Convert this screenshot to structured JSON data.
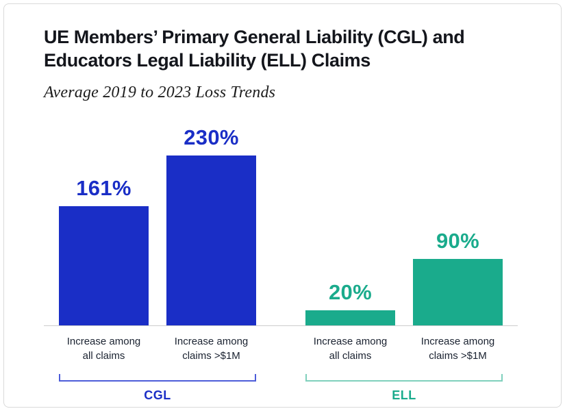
{
  "chart_data": {
    "type": "bar",
    "title": "UE Members’ Primary General Liability (CGL) and Educators Legal Liability (ELL) Claims",
    "title_line1": "UE Members’ Primary General Liability (CGL) and",
    "title_line2": "Educators Legal Liability (ELL) Claims",
    "subtitle": "Average 2019 to 2023 Loss Trends",
    "xlabel": "",
    "ylabel": "",
    "ylim": [
      0,
      250
    ],
    "grid": false,
    "legend": "none",
    "value_suffix": "%",
    "groups": [
      {
        "name": "CGL",
        "color": "#1a2ec6",
        "bracket_color": "#4c5cd9",
        "bars": [
          {
            "value": 161,
            "value_label": "161%",
            "label_line1": "Increase among",
            "label_line2": "all claims"
          },
          {
            "value": 230,
            "value_label": "230%",
            "label_line1": "Increase among",
            "label_line2": "claims >$1M"
          }
        ]
      },
      {
        "name": "ELL",
        "color": "#1aab8c",
        "bracket_color": "#7fd0bc",
        "bars": [
          {
            "value": 20,
            "value_label": "20%",
            "label_line1": "Increase among",
            "label_line2": "all claims"
          },
          {
            "value": 90,
            "value_label": "90%",
            "label_line1": "Increase among",
            "label_line2": "claims >$1M"
          }
        ]
      }
    ]
  }
}
